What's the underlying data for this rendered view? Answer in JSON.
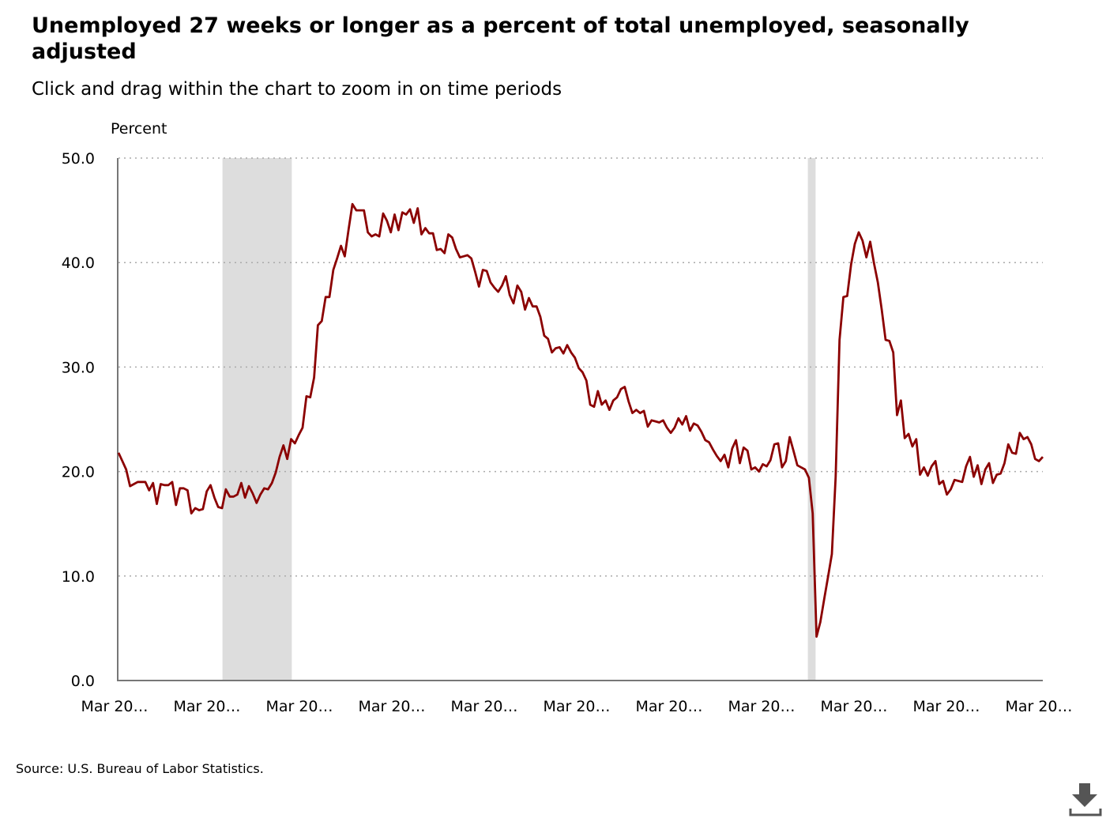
{
  "title": "Unemployed 27 weeks or longer as a percent of total unemployed, seasonally adjusted",
  "subtitle": "Click and drag within the chart to zoom in on time periods",
  "source": "Source: U.S. Bureau of Labor Statistics.",
  "download": {
    "icon": "download-icon"
  },
  "colors": {
    "line": "#8b0000",
    "recession": "#dddddd",
    "grid": "#aaaaaa",
    "axis": "#777777"
  },
  "chart_data": {
    "type": "line",
    "title": "Unemployed 27 weeks or longer as a percent of total unemployed, seasonally adjusted",
    "ylabel": "Percent",
    "ylim": [
      0,
      50
    ],
    "yticks": [
      "0.0",
      "10.0",
      "20.0",
      "30.0",
      "40.0",
      "50.0"
    ],
    "xticks": [
      "Mar 20…",
      "Mar 20…",
      "Mar 20…",
      "Mar 20…",
      "Mar 20…",
      "Mar 20…",
      "Mar 20…",
      "Mar 20…",
      "Mar 20…",
      "Mar 20…",
      "Mar 20…"
    ],
    "grid": true,
    "x_domain": [
      0,
      240
    ],
    "recession_shading": [
      [
        27,
        45
      ],
      [
        179,
        181
      ]
    ],
    "series": [
      {
        "values": [
          21.8,
          21.0,
          20.2,
          18.6,
          18.8,
          19.0,
          19.0,
          19.0,
          18.2,
          18.9,
          16.9,
          18.8,
          18.7,
          18.7,
          19.0,
          16.8,
          18.4,
          18.4,
          18.2,
          16.0,
          16.5,
          16.3,
          16.4,
          18.1,
          18.7,
          17.5,
          16.6,
          16.5,
          18.3,
          17.6,
          17.6,
          17.8,
          18.9,
          17.5,
          18.6,
          17.9,
          17.0,
          17.8,
          18.4,
          18.3,
          18.9,
          19.9,
          21.4,
          22.5,
          21.2,
          23.1,
          22.7,
          23.5,
          24.2,
          27.2,
          27.1,
          29.0,
          34.0,
          34.4,
          36.7,
          36.7,
          39.3,
          40.4,
          41.6,
          40.6,
          43.2,
          45.6,
          45.0,
          45.0,
          45.0,
          42.9,
          42.5,
          42.7,
          42.5,
          44.7,
          44.0,
          42.9,
          44.6,
          43.1,
          44.8,
          44.6,
          45.1,
          43.8,
          45.2,
          42.7,
          43.3,
          42.8,
          42.8,
          41.2,
          41.3,
          40.9,
          42.7,
          42.4,
          41.3,
          40.5,
          40.6,
          40.7,
          40.4,
          39.1,
          37.7,
          39.3,
          39.2,
          38.1,
          37.6,
          37.2,
          37.8,
          38.7,
          36.9,
          36.1,
          37.8,
          37.2,
          35.5,
          36.6,
          35.8,
          35.8,
          34.8,
          33.0,
          32.7,
          31.4,
          31.8,
          31.9,
          31.3,
          32.1,
          31.4,
          30.9,
          29.9,
          29.5,
          28.7,
          26.4,
          26.2,
          27.7,
          26.4,
          26.8,
          25.9,
          26.8,
          27.1,
          27.9,
          28.1,
          26.7,
          25.6,
          25.9,
          25.6,
          25.8,
          24.3,
          24.9,
          24.8,
          24.7,
          24.9,
          24.2,
          23.7,
          24.2,
          25.1,
          24.5,
          25.3,
          23.9,
          24.6,
          24.4,
          23.8,
          23.0,
          22.8,
          22.1,
          21.5,
          21.0,
          21.6,
          20.4,
          22.2,
          23.0,
          20.8,
          22.3,
          22.0,
          20.2,
          20.4,
          20.0,
          20.7,
          20.5,
          21.1,
          22.6,
          22.7,
          20.4,
          21.0,
          23.3,
          22.0,
          20.6,
          20.4,
          20.2,
          19.4,
          16.0,
          4.2,
          5.6,
          7.8,
          9.9,
          12.1,
          19.5,
          32.6,
          36.7,
          36.8,
          39.8,
          41.8,
          42.9,
          42.1,
          40.5,
          42.0,
          39.9,
          38.1,
          35.5,
          32.6,
          32.5,
          31.4,
          25.4,
          26.8,
          23.2,
          23.6,
          22.4,
          23.1,
          19.7,
          20.4,
          19.6,
          20.5,
          21.0,
          18.8,
          19.1,
          17.8,
          18.3,
          19.2,
          19.1,
          19.0,
          20.5,
          21.4,
          19.5,
          20.6,
          18.8,
          20.2,
          20.8,
          18.9,
          19.7,
          19.8,
          20.8,
          22.6,
          21.8,
          21.7,
          23.7,
          23.1,
          23.3,
          22.6,
          21.2,
          21.0,
          21.4
        ]
      }
    ]
  }
}
